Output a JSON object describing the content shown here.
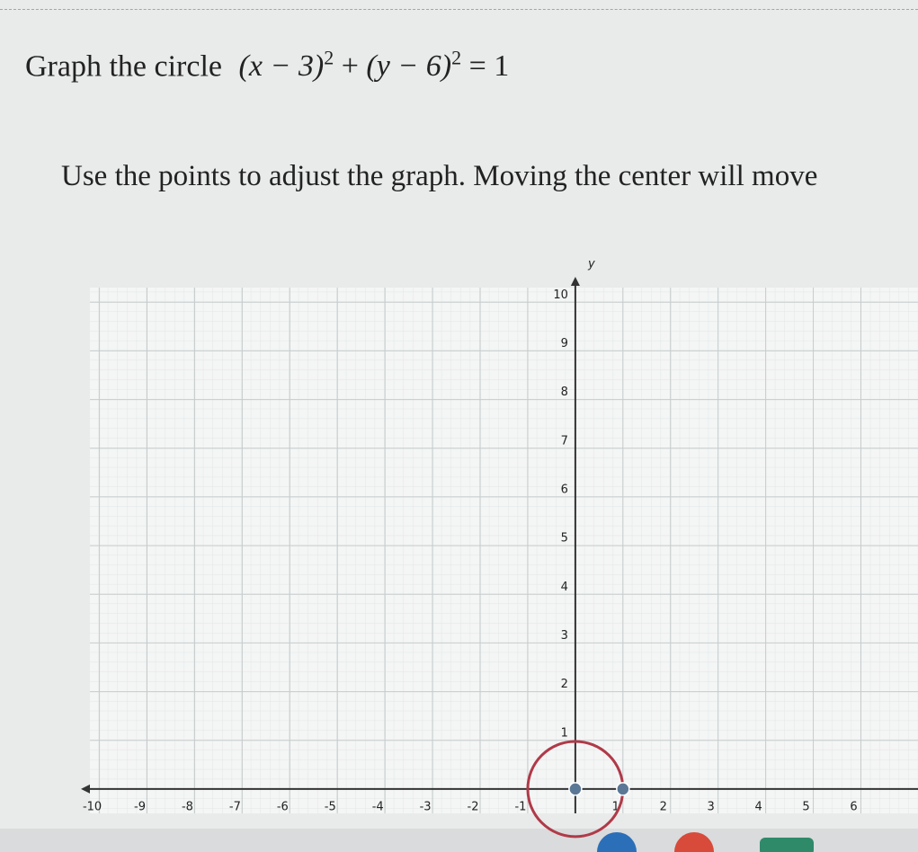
{
  "prompt": {
    "lead": "Graph the circle",
    "equation": {
      "term1": "(x − 3)",
      "power1": "2",
      "plus": "+",
      "term2": "(y − 6)",
      "power2": "2",
      "rhs": "= 1"
    }
  },
  "instruction": "Use the points to adjust the graph. Moving the center will move",
  "graph": {
    "y_axis_label": "y",
    "xlim": [
      -10.2,
      7.2
    ],
    "ylim": [
      -0.5,
      10.3
    ],
    "xticks": [
      -10,
      -9,
      -8,
      -7,
      -6,
      -5,
      -4,
      -3,
      -2,
      -1,
      1,
      2,
      3,
      4,
      5,
      6
    ],
    "yticks": [
      1,
      2,
      3,
      4,
      5,
      6,
      7,
      8,
      9,
      10
    ],
    "circle": {
      "center_x": 0,
      "center_y": 0,
      "radius": 1,
      "color": "#b03a48"
    },
    "edge_point": {
      "x": 1,
      "y": 0
    },
    "point_color": "#5a7896"
  }
}
